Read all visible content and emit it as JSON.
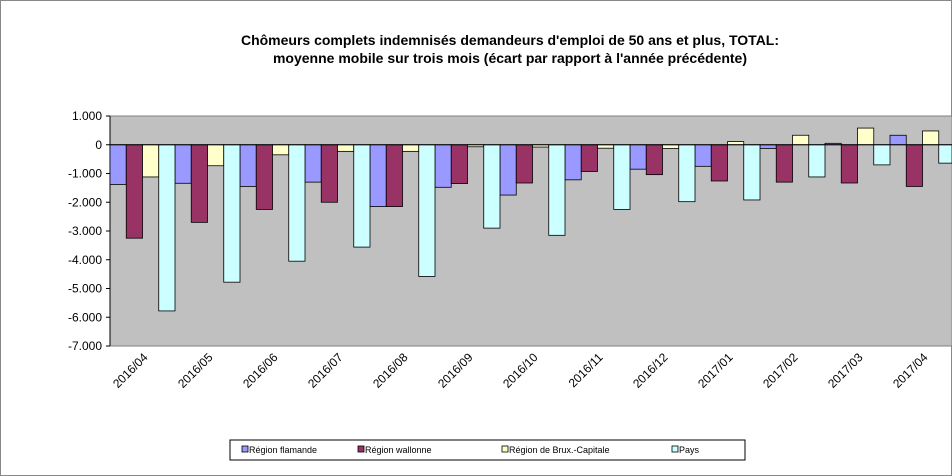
{
  "chart_data": {
    "type": "bar",
    "title": "Chômeurs complets indemnisés demandeurs d'emploi de 50 ans et plus, TOTAL:",
    "subtitle": "moyenne mobile sur trois mois (écart par rapport à l'année précédente)",
    "categories": [
      "2016/04",
      "2016/05",
      "2016/06",
      "2016/07",
      "2016/08",
      "2016/09",
      "2016/10",
      "2016/11",
      "2016/12",
      "2017/01",
      "2017/02",
      "2017/03",
      "2017/04"
    ],
    "series": [
      {
        "name": "Région flamande",
        "color": "#9999ff",
        "values": [
          -1380,
          -1340,
          -1450,
          -1300,
          -2150,
          -1480,
          -1750,
          -1220,
          -850,
          -750,
          -130,
          50,
          330
        ]
      },
      {
        "name": "Région wallonne",
        "color": "#993366",
        "values": [
          -3250,
          -2700,
          -2250,
          -2000,
          -2150,
          -1350,
          -1330,
          -930,
          -1040,
          -1260,
          -1300,
          -1330,
          -1450
        ]
      },
      {
        "name": "Région de Brux.-Capitale",
        "color": "#ffffcc",
        "values": [
          -1120,
          -730,
          -350,
          -230,
          -230,
          -70,
          -80,
          -120,
          -130,
          110,
          330,
          580,
          480
        ]
      },
      {
        "name": "Pays",
        "color": "#ccffff",
        "values": [
          -5780,
          -4780,
          -4050,
          -3560,
          -4580,
          -2900,
          -3150,
          -2250,
          -1980,
          -1920,
          -1120,
          -700,
          -640
        ]
      }
    ],
    "ylim": [
      -7000,
      1000
    ],
    "yticks": [
      {
        "value": 1000,
        "label": "1.000"
      },
      0,
      {
        "value": -1000,
        "label": "-1.000"
      },
      {
        "value": -2000,
        "label": "-2.000"
      },
      {
        "value": -3000,
        "label": "-3.000"
      },
      {
        "value": -4000,
        "label": "-4.000"
      },
      {
        "value": -5000,
        "label": "-5.000"
      },
      {
        "value": -6000,
        "label": "-6.000"
      },
      {
        "value": -7000,
        "label": "-7.000"
      }
    ],
    "plot_background": "#c0c0c0"
  }
}
